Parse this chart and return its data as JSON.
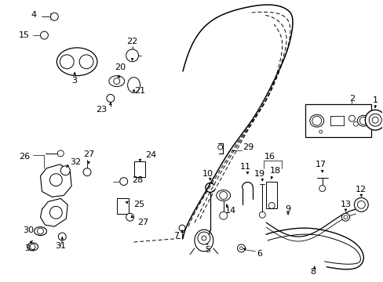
{
  "bg_color": "#ffffff",
  "fg_color": "#000000",
  "fig_width": 4.89,
  "fig_height": 3.6,
  "dpi": 100
}
